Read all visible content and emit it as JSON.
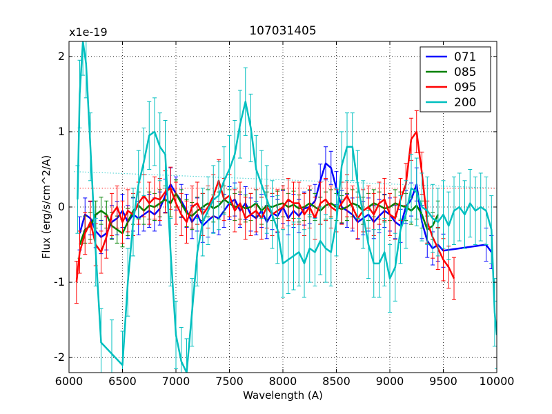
{
  "chart_data": {
    "type": "line",
    "title": "107031405",
    "xlabel": "Wavelength (A)",
    "ylabel": "Flux (erg/s/cm^2/A)",
    "offset_label": "x1e-19",
    "xlim": [
      6000,
      10000
    ],
    "ylim": [
      -2.2,
      2.2
    ],
    "xticks": [
      6000,
      6500,
      7000,
      7500,
      8000,
      8500,
      9000,
      9500,
      10000
    ],
    "yticks": [
      -2,
      -1,
      0,
      1,
      2
    ],
    "grid": true,
    "legend_position": "top-right",
    "series": [
      {
        "name": "071",
        "color": "#0000ff",
        "x": [
          6100,
          6150,
          6200,
          6250,
          6300,
          6350,
          6400,
          6450,
          6500,
          6550,
          6600,
          6650,
          6700,
          6750,
          6800,
          6850,
          6900,
          6950,
          7000,
          7050,
          7100,
          7150,
          7200,
          7250,
          7300,
          7350,
          7400,
          7450,
          7500,
          7550,
          7600,
          7650,
          7700,
          7750,
          7800,
          7850,
          7900,
          7950,
          8000,
          8050,
          8100,
          8150,
          8200,
          8250,
          8300,
          8350,
          8400,
          8450,
          8500,
          8550,
          8600,
          8650,
          8700,
          8750,
          8800,
          8850,
          8900,
          8950,
          9000,
          9050,
          9100,
          9150,
          9200,
          9250,
          9300,
          9350,
          9400,
          9450,
          9500,
          9900,
          9950
        ],
        "y": [
          -0.35,
          -0.1,
          -0.15,
          -0.32,
          -0.4,
          -0.35,
          -0.2,
          -0.15,
          -0.05,
          -0.2,
          -0.1,
          -0.15,
          -0.1,
          -0.05,
          -0.1,
          -0.02,
          0.15,
          0.3,
          0.18,
          0.08,
          -0.05,
          -0.2,
          -0.1,
          -0.25,
          -0.18,
          -0.12,
          -0.15,
          -0.05,
          0.05,
          0.1,
          -0.05,
          0.05,
          -0.1,
          -0.15,
          -0.05,
          -0.2,
          -0.08,
          -0.12,
          0.0,
          -0.15,
          -0.05,
          -0.12,
          -0.02,
          0.0,
          0.08,
          0.35,
          0.58,
          0.52,
          0.25,
          0.0,
          -0.05,
          -0.1,
          -0.2,
          -0.15,
          -0.1,
          -0.2,
          -0.12,
          -0.05,
          -0.1,
          -0.2,
          -0.25,
          0.0,
          0.1,
          0.3,
          -0.2,
          -0.45,
          -0.55,
          -0.5,
          -0.58,
          -0.5,
          -0.6
        ]
      },
      {
        "name": "085",
        "color": "#008000",
        "x": [
          6100,
          6150,
          6200,
          6250,
          6300,
          6350,
          6400,
          6450,
          6500,
          6550,
          6600,
          6650,
          6700,
          6750,
          6800,
          6850,
          6900,
          6950,
          7000,
          7050,
          7100,
          7150,
          7200,
          7250,
          7300,
          7350,
          7400,
          7450,
          7500,
          7550,
          7600,
          7650,
          7700,
          7750,
          7800,
          7850,
          7900,
          7950,
          8000,
          8050,
          8100,
          8150,
          8200,
          8250,
          8300,
          8350,
          8400,
          8450,
          8500,
          8550,
          8600,
          8650,
          8700,
          8750,
          8800,
          8850,
          8900,
          8950,
          9000,
          9050,
          9100,
          9150,
          9200,
          9250,
          9300,
          9350,
          9400,
          9450
        ],
        "y": [
          -0.5,
          -0.3,
          -0.25,
          -0.1,
          -0.05,
          -0.1,
          -0.25,
          -0.3,
          -0.35,
          -0.2,
          -0.05,
          0.02,
          -0.05,
          0.02,
          0.0,
          0.05,
          0.1,
          0.05,
          0.18,
          0.05,
          -0.08,
          -0.12,
          -0.05,
          0.0,
          0.05,
          -0.02,
          0.02,
          0.1,
          0.05,
          0.0,
          0.02,
          -0.02,
          0.0,
          0.05,
          -0.05,
          0.02,
          0.0,
          0.03,
          0.05,
          0.0,
          0.03,
          -0.02,
          0.0,
          0.05,
          0.0,
          -0.05,
          0.02,
          0.05,
          0.0,
          -0.03,
          0.0,
          0.05,
          0.02,
          -0.05,
          0.0,
          0.05,
          0.02,
          -0.02,
          0.0,
          0.05,
          0.02,
          0.0,
          -0.05,
          0.02,
          -0.1,
          -0.3,
          -0.25,
          -0.1
        ]
      },
      {
        "name": "095",
        "color": "#ff0000",
        "x": [
          6070,
          6100,
          6150,
          6200,
          6250,
          6300,
          6350,
          6400,
          6450,
          6500,
          6550,
          6600,
          6650,
          6700,
          6750,
          6800,
          6850,
          6900,
          6950,
          7000,
          7050,
          7100,
          7150,
          7200,
          7250,
          7300,
          7350,
          7400,
          7450,
          7500,
          7550,
          7600,
          7650,
          7700,
          7750,
          7800,
          7850,
          7900,
          7950,
          8000,
          8050,
          8100,
          8150,
          8200,
          8250,
          8300,
          8350,
          8400,
          8450,
          8500,
          8550,
          8600,
          8650,
          8700,
          8750,
          8800,
          8850,
          8900,
          8950,
          9000,
          9050,
          9100,
          9150,
          9200,
          9250,
          9300,
          9350,
          9400,
          9450,
          9500,
          9550,
          9600
        ],
        "y": [
          -1.0,
          -0.6,
          -0.35,
          -0.2,
          -0.5,
          -0.6,
          -0.4,
          -0.1,
          0.0,
          -0.2,
          -0.05,
          -0.1,
          0.05,
          0.15,
          0.05,
          0.12,
          0.1,
          0.2,
          0.25,
          0.05,
          -0.1,
          -0.2,
          0.0,
          0.05,
          -0.1,
          0.0,
          0.15,
          0.35,
          0.1,
          0.15,
          -0.05,
          0.05,
          -0.15,
          -0.1,
          -0.05,
          -0.15,
          0.0,
          -0.1,
          -0.05,
          0.0,
          0.1,
          0.05,
          0.05,
          -0.1,
          0.0,
          -0.15,
          0.05,
          0.1,
          0.0,
          -0.05,
          0.05,
          0.15,
          0.0,
          -0.15,
          -0.05,
          0.0,
          -0.1,
          0.05,
          0.1,
          -0.1,
          -0.15,
          0.1,
          0.3,
          0.9,
          1.0,
          0.45,
          -0.2,
          -0.4,
          -0.55,
          -0.7,
          -0.8,
          -0.95
        ]
      },
      {
        "name": "200",
        "color": "#00bfbf",
        "x": [
          6080,
          6100,
          6130,
          6160,
          6200,
          6250,
          6300,
          6400,
          6500,
          6550,
          6600,
          6650,
          6700,
          6750,
          6800,
          6850,
          6900,
          6950,
          7000,
          7050,
          7100,
          7150,
          7200,
          7250,
          7300,
          7350,
          7400,
          7450,
          7500,
          7550,
          7600,
          7650,
          7700,
          7750,
          7800,
          7850,
          7900,
          7950,
          8000,
          8050,
          8100,
          8150,
          8200,
          8250,
          8300,
          8350,
          8400,
          8450,
          8500,
          8550,
          8600,
          8650,
          8700,
          8750,
          8800,
          8850,
          8900,
          8950,
          9000,
          9050,
          9100,
          9150,
          9200,
          9250,
          9300,
          9350,
          9400,
          9450,
          9500,
          9550,
          9600,
          9650,
          9700,
          9750,
          9800,
          9850,
          9900,
          9950,
          9980,
          10000
        ],
        "y": [
          0.1,
          1.5,
          2.2,
          1.9,
          0.8,
          -0.6,
          -1.8,
          -1.95,
          -2.1,
          -1.0,
          -0.2,
          0.3,
          0.6,
          0.95,
          1.0,
          0.8,
          0.7,
          -0.6,
          -1.7,
          -2.05,
          -2.2,
          -1.4,
          -0.6,
          -0.2,
          -0.05,
          0.1,
          0.15,
          0.35,
          0.5,
          0.7,
          1.1,
          1.4,
          1.05,
          0.5,
          0.3,
          0.1,
          -0.1,
          -0.3,
          -0.75,
          -0.7,
          -0.65,
          -0.6,
          -0.75,
          -0.55,
          -0.6,
          -0.45,
          -0.55,
          -0.6,
          -0.2,
          0.55,
          0.8,
          0.8,
          0.3,
          -0.1,
          -0.5,
          -0.75,
          -0.75,
          -0.6,
          -0.95,
          -0.8,
          -0.3,
          -0.1,
          0.25,
          0.2,
          0.0,
          -0.05,
          -0.15,
          -0.2,
          -0.1,
          -0.25,
          -0.05,
          0.0,
          -0.1,
          0.05,
          -0.05,
          0.0,
          -0.05,
          -0.3,
          -1.4,
          -1.7
        ]
      }
    ],
    "reference_lines": [
      {
        "color": "#00bfbf",
        "style": "dotted",
        "x": [
          6050,
          10000
        ],
        "y": [
          0.47,
          0.25
        ]
      },
      {
        "color": "#ff0000",
        "style": "dotted",
        "x": [
          6050,
          10000
        ],
        "y": [
          0.25,
          0.25
        ]
      }
    ]
  }
}
